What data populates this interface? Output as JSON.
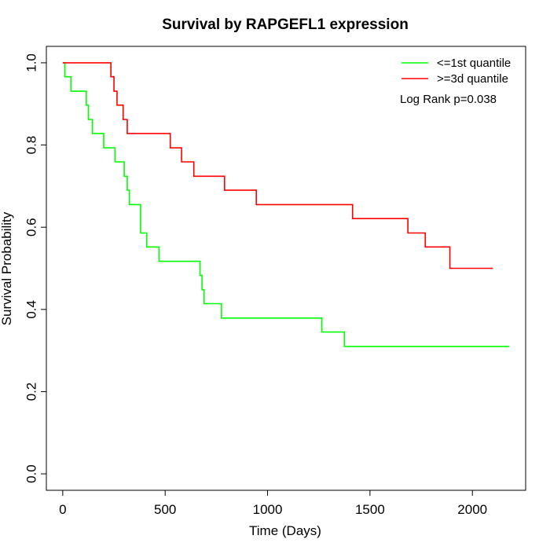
{
  "chart_data": {
    "type": "line",
    "title": "Survival by RAPGEFL1 expression",
    "xlabel": "Time (Days)",
    "ylabel": "Survival Probability",
    "xlim": [
      -80,
      2260
    ],
    "ylim": [
      -0.04,
      1.04
    ],
    "x_ticks": [
      0,
      500,
      1000,
      1500,
      2000
    ],
    "y_ticks": [
      0.0,
      0.2,
      0.4,
      0.6,
      0.8,
      1.0
    ],
    "x_tick_labels": [
      "0",
      "500",
      "1000",
      "1500",
      "2000"
    ],
    "y_tick_labels": [
      "0.0",
      "0.2",
      "0.4",
      "0.6",
      "0.8",
      "1.0"
    ],
    "grid": false,
    "legend_position": "top-right",
    "annotation": "Log Rank p=0.038",
    "series": [
      {
        "name": "<=1st quantile",
        "color": "#00ff00",
        "step": true,
        "x": [
          0,
          10,
          40,
          115,
          125,
          145,
          200,
          255,
          300,
          315,
          325,
          380,
          390,
          410,
          470,
          670,
          680,
          690,
          700,
          775,
          1265,
          1375,
          2180
        ],
        "y": [
          1.0,
          0.966,
          0.931,
          0.897,
          0.862,
          0.828,
          0.793,
          0.759,
          0.724,
          0.69,
          0.655,
          0.586,
          0.586,
          0.552,
          0.517,
          0.483,
          0.448,
          0.414,
          0.414,
          0.379,
          0.345,
          0.31,
          0.31
        ]
      },
      {
        "name": ">=3d quantile",
        "color": "#ff0000",
        "step": true,
        "x": [
          0,
          235,
          250,
          265,
          275,
          295,
          315,
          525,
          580,
          640,
          790,
          945,
          1415,
          1685,
          1770,
          1890,
          2100
        ],
        "y": [
          1.0,
          0.966,
          0.931,
          0.897,
          0.897,
          0.862,
          0.828,
          0.793,
          0.759,
          0.724,
          0.69,
          0.655,
          0.621,
          0.586,
          0.552,
          0.5,
          0.5
        ]
      }
    ]
  }
}
